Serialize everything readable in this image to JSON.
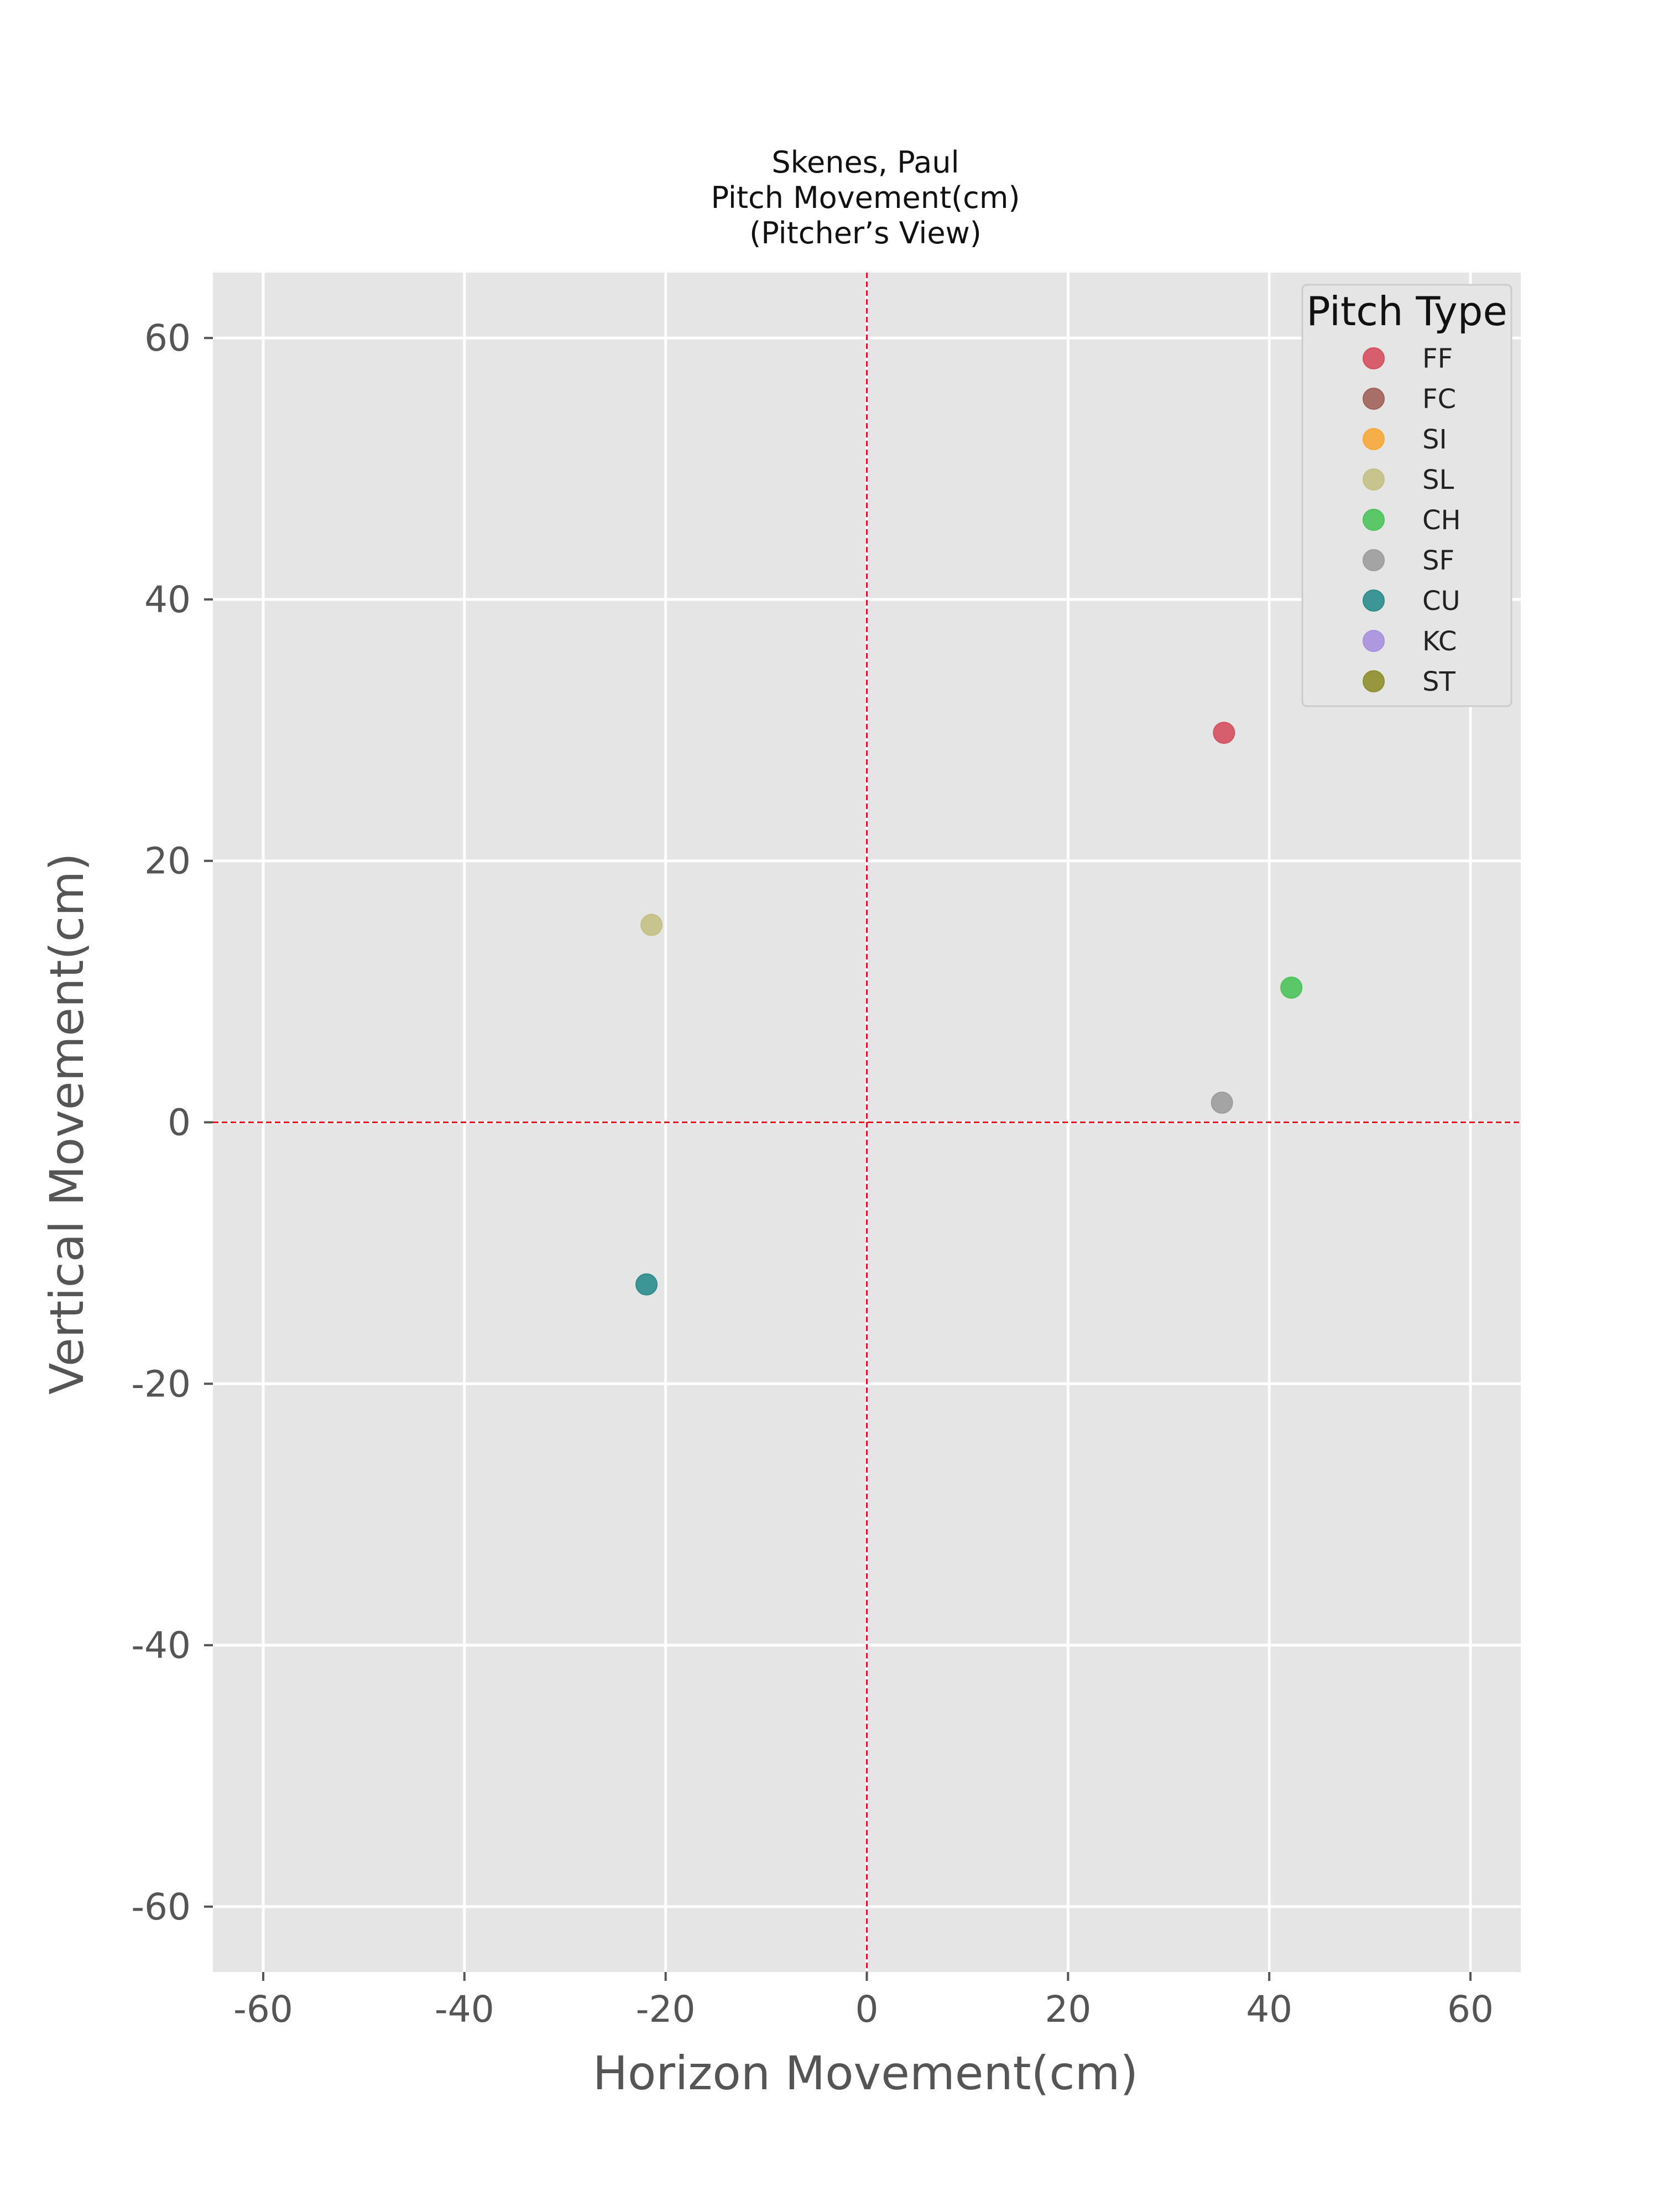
{
  "chart_data": {
    "type": "scatter",
    "title_lines": [
      "Skenes, Paul",
      "Pitch Movement(cm)",
      "(Pitcher’s View)"
    ],
    "xlabel": "Horizon Movement(cm)",
    "ylabel": "Vertical Movement(cm)",
    "xlim": [
      -65,
      65
    ],
    "ylim": [
      -65,
      65
    ],
    "xticks": [
      -60,
      -40,
      -20,
      0,
      20,
      40,
      60
    ],
    "yticks": [
      -60,
      -40,
      -20,
      0,
      20,
      40,
      60
    ],
    "xtick_labels": [
      "-60",
      "-40",
      "-20",
      "0",
      "20",
      "40",
      "60"
    ],
    "ytick_labels": [
      "-60",
      "-40",
      "-20",
      "0",
      "20",
      "40",
      "60"
    ],
    "grid": true,
    "reference_lines": {
      "x": 0,
      "y": 0,
      "color": "#e8111b",
      "style": "dashed"
    },
    "legend": {
      "title": "Pitch Type",
      "placement": "top-right",
      "entries": [
        {
          "label": "FF",
          "color": "#d5505f"
        },
        {
          "label": "FC",
          "color": "#a0625a"
        },
        {
          "label": "SI",
          "color": "#f7a738"
        },
        {
          "label": "SL",
          "color": "#c4c083"
        },
        {
          "label": "CH",
          "color": "#4cc35a"
        },
        {
          "label": "SF",
          "color": "#9c9c9c"
        },
        {
          "label": "CU",
          "color": "#2a8c8c"
        },
        {
          "label": "KC",
          "color": "#a690dd"
        },
        {
          "label": "ST",
          "color": "#8f8e2c"
        }
      ]
    },
    "series": [
      {
        "name": "FF",
        "color": "#d5505f",
        "x": 35.5,
        "y": 29.8
      },
      {
        "name": "SL",
        "color": "#c4c083",
        "x": -21.4,
        "y": 15.1
      },
      {
        "name": "CH",
        "color": "#4cc35a",
        "x": 42.2,
        "y": 10.3
      },
      {
        "name": "SF",
        "color": "#9c9c9c",
        "x": 35.3,
        "y": 1.5
      },
      {
        "name": "CU",
        "color": "#2a8c8c",
        "x": -21.9,
        "y": -12.4
      }
    ]
  }
}
